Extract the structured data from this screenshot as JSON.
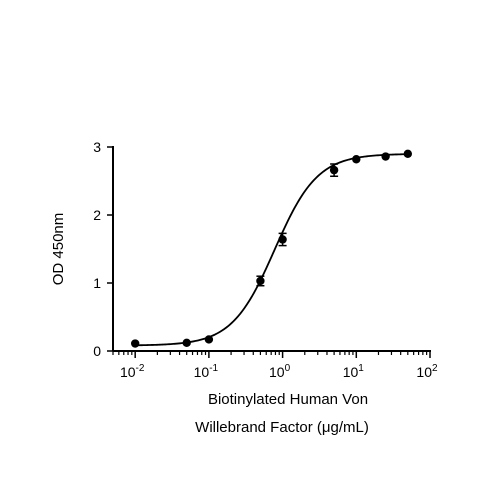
{
  "chart_data": {
    "type": "scatter",
    "title": "",
    "xlabel_lines": [
      "Biotinylated Human Von",
      "Willebrand Factor (μg/mL)"
    ],
    "ylabel": "OD 450nm",
    "xscale": "log",
    "xlim": [
      0.005,
      100
    ],
    "ylim": [
      0,
      3
    ],
    "x_ticks": [
      {
        "value": 0.01,
        "base": "10",
        "exp": "-2"
      },
      {
        "value": 0.1,
        "base": "10",
        "exp": "-1"
      },
      {
        "value": 1,
        "base": "10",
        "exp": "0"
      },
      {
        "value": 10,
        "base": "10",
        "exp": "1"
      },
      {
        "value": 100,
        "base": "10",
        "exp": "2"
      }
    ],
    "y_ticks": [
      {
        "value": 0,
        "label": "0"
      },
      {
        "value": 1,
        "label": "1"
      },
      {
        "value": 2,
        "label": "2"
      },
      {
        "value": 3,
        "label": "3"
      }
    ],
    "points": [
      {
        "x": 0.01,
        "y": 0.11,
        "err": 0
      },
      {
        "x": 0.05,
        "y": 0.12,
        "err": 0
      },
      {
        "x": 0.1,
        "y": 0.17,
        "err": 0
      },
      {
        "x": 0.5,
        "y": 1.03,
        "err": 0.07
      },
      {
        "x": 1,
        "y": 1.64,
        "err": 0.09
      },
      {
        "x": 5,
        "y": 2.66,
        "err": 0.09
      },
      {
        "x": 10,
        "y": 2.82,
        "err": 0
      },
      {
        "x": 25,
        "y": 2.86,
        "err": 0
      },
      {
        "x": 50,
        "y": 2.9,
        "err": 0
      }
    ],
    "fit": {
      "bottom": 0.08,
      "top": 2.9,
      "ec50": 0.78,
      "hill": 1.5
    },
    "grid": false,
    "legend": "none"
  }
}
